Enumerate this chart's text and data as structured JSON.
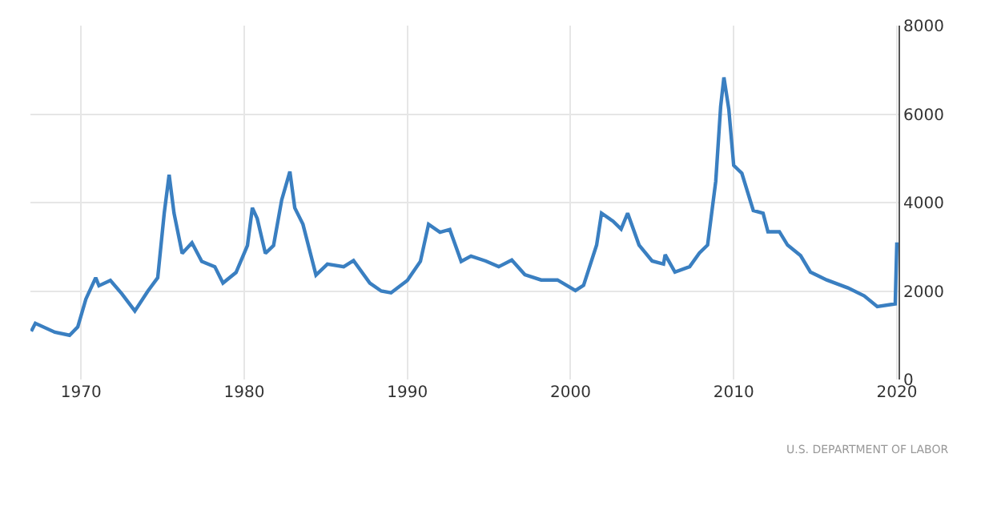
{
  "chart_data": {
    "type": "line",
    "x": [
      1966.95,
      1967.2,
      1968.4,
      1969.3,
      1969.8,
      1970.3,
      1970.9,
      1971.1,
      1971.8,
      1972.5,
      1973.3,
      1974.1,
      1974.7,
      1975.1,
      1975.4,
      1975.7,
      1976.2,
      1976.8,
      1977.4,
      1978.2,
      1978.7,
      1979.5,
      1980.2,
      1980.5,
      1980.8,
      1981.3,
      1981.8,
      1982.3,
      1982.8,
      1983.1,
      1983.6,
      1984.4,
      1985.1,
      1986.1,
      1986.7,
      1987.7,
      1988.4,
      1989.0,
      1990.0,
      1990.8,
      1991.3,
      1992.0,
      1992.6,
      1993.3,
      1993.9,
      1994.8,
      1995.6,
      1996.4,
      1997.2,
      1998.2,
      1999.2,
      2000.3,
      2000.8,
      2001.6,
      2001.9,
      2002.6,
      2003.1,
      2003.5,
      2004.2,
      2005.0,
      2005.7,
      2005.8,
      2006.4,
      2007.3,
      2007.9,
      2008.4,
      2008.9,
      2009.2,
      2009.4,
      2009.7,
      2010.0,
      2010.5,
      2011.2,
      2011.8,
      2012.1,
      2012.8,
      2013.3,
      2014.1,
      2014.7,
      2015.7,
      2017.0,
      2018.0,
      2018.8,
      2019.9,
      2020.0
    ],
    "series": [
      {
        "color": "#3a7fc1",
        "values": [
          1090,
          1270,
          1070,
          1000,
          1190,
          1820,
          2300,
          2120,
          2240,
          1940,
          1550,
          2000,
          2300,
          3760,
          4630,
          3760,
          2850,
          3090,
          2670,
          2550,
          2180,
          2420,
          3030,
          3880,
          3640,
          2850,
          3030,
          4060,
          4700,
          3880,
          3510,
          2360,
          2610,
          2550,
          2690,
          2180,
          2000,
          1960,
          2240,
          2670,
          3510,
          3330,
          3390,
          2670,
          2790,
          2680,
          2550,
          2700,
          2370,
          2250,
          2250,
          2010,
          2130,
          3040,
          3760,
          3580,
          3400,
          3760,
          3040,
          2680,
          2610,
          2820,
          2430,
          2550,
          2860,
          3040,
          4480,
          6170,
          6830,
          6110,
          4840,
          4660,
          3820,
          3760,
          3340,
          3340,
          3040,
          2800,
          2430,
          2250,
          2070,
          1890,
          1650,
          1710,
          3100
        ]
      }
    ],
    "xlim": [
      1966.9,
      2020.1
    ],
    "xticks": [
      1970,
      1980,
      1990,
      2000,
      2010,
      2020
    ],
    "ylim": [
      0,
      8000
    ],
    "yticks": [
      0,
      2000,
      4000,
      6000,
      8000
    ],
    "grid": true,
    "marker": "none",
    "line_style": "solid",
    "annotations": [
      "U.S. DEPARTMENT OF LABOR"
    ]
  }
}
